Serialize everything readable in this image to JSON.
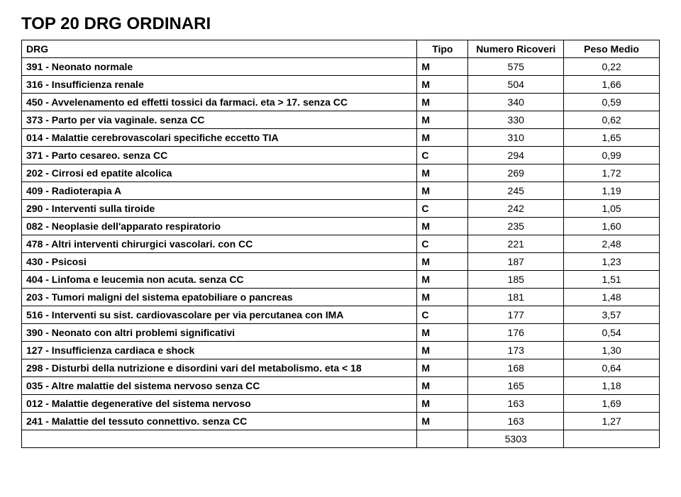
{
  "title": "TOP 20 DRG ORDINARI",
  "headers": {
    "drg": "DRG",
    "tipo": "Tipo",
    "numero": "Numero Ricoveri",
    "peso": "Peso Medio"
  },
  "rows": [
    {
      "drg": "391 - Neonato normale",
      "tipo": "M",
      "num": "575",
      "peso": "0,22"
    },
    {
      "drg": "316 - Insufficienza renale",
      "tipo": "M",
      "num": "504",
      "peso": "1,66"
    },
    {
      "drg": "450 - Avvelenamento ed effetti tossici da farmaci. eta > 17. senza CC",
      "tipo": "M",
      "num": "340",
      "peso": "0,59"
    },
    {
      "drg": "373 - Parto per via vaginale. senza CC",
      "tipo": "M",
      "num": "330",
      "peso": "0,62"
    },
    {
      "drg": "014 - Malattie cerebrovascolari specifiche eccetto TIA",
      "tipo": "M",
      "num": "310",
      "peso": "1,65"
    },
    {
      "drg": "371 - Parto cesareo. senza CC",
      "tipo": "C",
      "num": "294",
      "peso": "0,99"
    },
    {
      "drg": "202 - Cirrosi ed epatite alcolica",
      "tipo": "M",
      "num": "269",
      "peso": "1,72"
    },
    {
      "drg": "409 - Radioterapia A",
      "tipo": "M",
      "num": "245",
      "peso": "1,19"
    },
    {
      "drg": "290 - Interventi sulla tiroide",
      "tipo": "C",
      "num": "242",
      "peso": "1,05"
    },
    {
      "drg": "082 - Neoplasie dell'apparato respiratorio",
      "tipo": "M",
      "num": "235",
      "peso": "1,60"
    },
    {
      "drg": "478 - Altri interventi chirurgici vascolari. con CC",
      "tipo": "C",
      "num": "221",
      "peso": "2,48"
    },
    {
      "drg": "430 - Psicosi",
      "tipo": "M",
      "num": "187",
      "peso": "1,23"
    },
    {
      "drg": "404 - Linfoma e leucemia non acuta. senza CC",
      "tipo": "M",
      "num": "185",
      "peso": "1,51"
    },
    {
      "drg": "203 - Tumori maligni del sistema epatobiliare o pancreas",
      "tipo": "M",
      "num": "181",
      "peso": "1,48"
    },
    {
      "drg": "516 - Interventi su sist. cardiovascolare per via percutanea con IMA",
      "tipo": "C",
      "num": "177",
      "peso": "3,57"
    },
    {
      "drg": "390 - Neonato con altri problemi significativi",
      "tipo": "M",
      "num": "176",
      "peso": "0,54"
    },
    {
      "drg": "127 - Insufficienza cardiaca e shock",
      "tipo": "M",
      "num": "173",
      "peso": "1,30"
    },
    {
      "drg": "298 - Disturbi della nutrizione e disordini vari del metabolismo. eta < 18",
      "tipo": "M",
      "num": "168",
      "peso": "0,64"
    },
    {
      "drg": "035 - Altre malattie del sistema nervoso senza CC",
      "tipo": "M",
      "num": "165",
      "peso": "1,18"
    },
    {
      "drg": "012 - Malattie degenerative del sistema nervoso",
      "tipo": "M",
      "num": "163",
      "peso": "1,69"
    },
    {
      "drg": "241 - Malattie del tessuto connettivo. senza CC",
      "tipo": "M",
      "num": "163",
      "peso": "1,27"
    }
  ],
  "total": "5303"
}
